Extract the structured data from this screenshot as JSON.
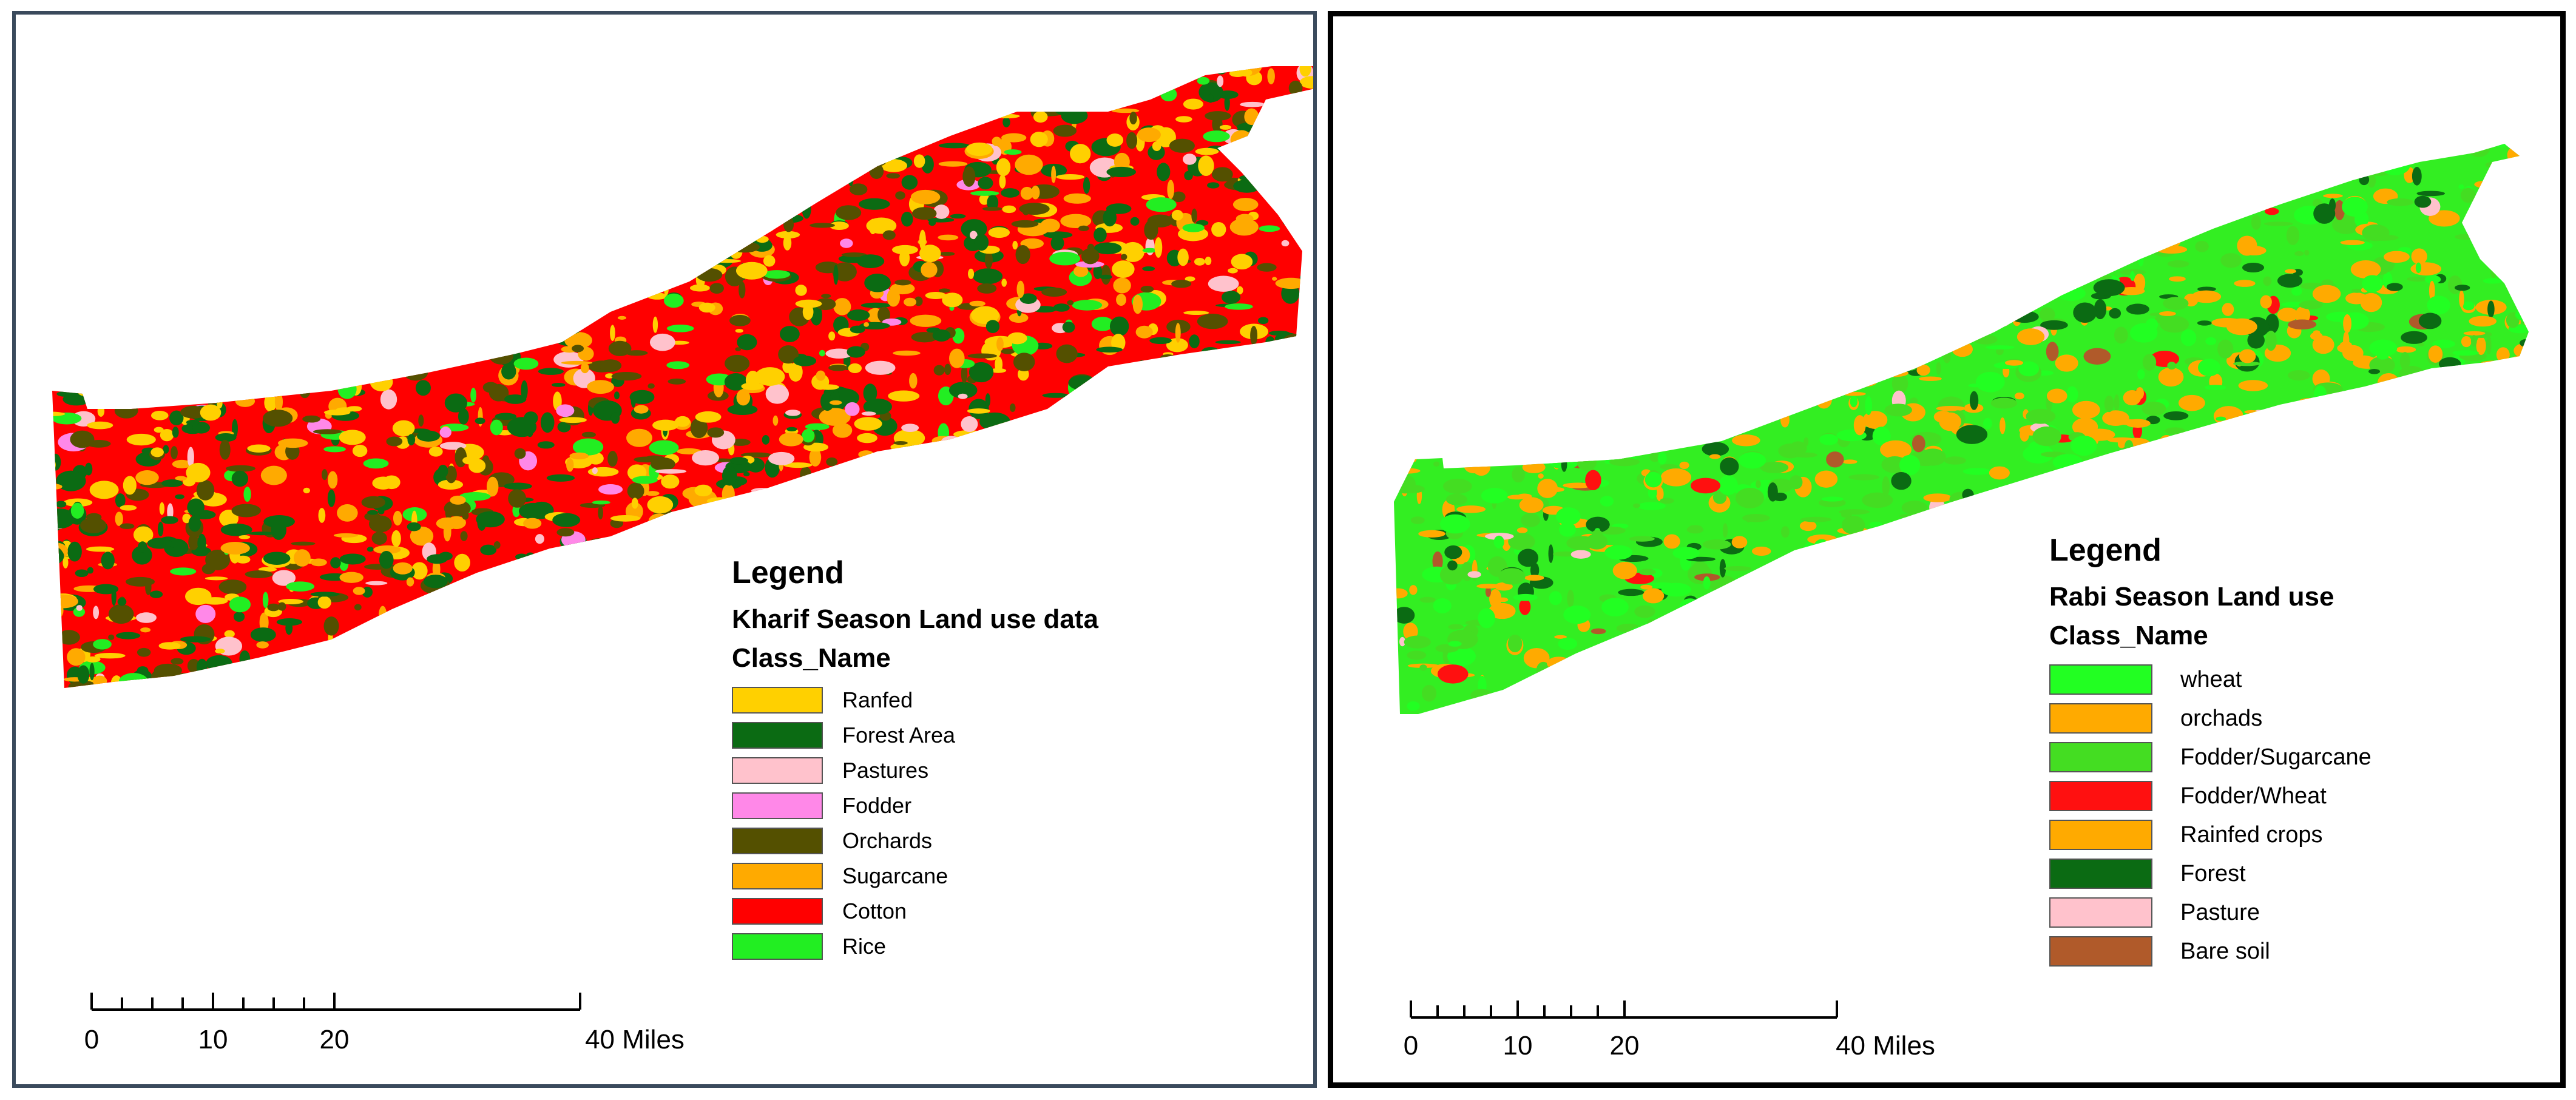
{
  "maps": {
    "left": {
      "legend_title": "Legend",
      "legend_subtitle": "Kharif Season Land use data",
      "field_name": "Class_Name",
      "base_color": "#ff0000",
      "classes": [
        {
          "label": "Ranfed",
          "color": "#ffd000"
        },
        {
          "label": "Forest Area",
          "color": "#0b6b13"
        },
        {
          "label": "Pastures",
          "color": "#ffc2cc"
        },
        {
          "label": "Fodder",
          "color": "#ff88e8"
        },
        {
          "label": "Orchards",
          "color": "#545000"
        },
        {
          "label": "Sugarcane",
          "color": "#ffaa00"
        },
        {
          "label": "Cotton",
          "color": "#ff0000"
        },
        {
          "label": "Rice",
          "color": "#22ee22"
        }
      ],
      "scale": {
        "labels": [
          "0",
          "10",
          "20",
          "40 Miles"
        ]
      }
    },
    "right": {
      "legend_title": "Legend",
      "legend_subtitle": "Rabi Season Land use",
      "field_name": "Class_Name",
      "base_color": "#33ee22",
      "classes": [
        {
          "label": "wheat",
          "color": "#22ff22"
        },
        {
          "label": "orchads",
          "color": "#ffaa00"
        },
        {
          "label": "Fodder/Sugarcane",
          "color": "#44dd22"
        },
        {
          "label": "Fodder/Wheat",
          "color": "#ff1010"
        },
        {
          "label": "Rainfed crops",
          "color": "#ffaa00"
        },
        {
          "label": "Forest",
          "color": "#0b6b13"
        },
        {
          "label": "Pasture",
          "color": "#ffc2cc"
        },
        {
          "label": "Bare soil",
          "color": "#b05a2a"
        }
      ],
      "scale": {
        "labels": [
          "0",
          "10",
          "20",
          "40 Miles"
        ]
      }
    }
  }
}
